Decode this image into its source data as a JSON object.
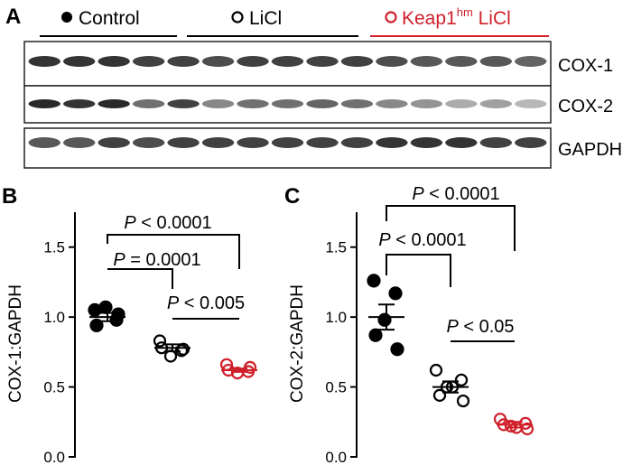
{
  "panel_a": {
    "label": "A",
    "groups": [
      {
        "name": "Control",
        "color": "#000000",
        "marker": "filled"
      },
      {
        "name": "LiCl",
        "color": "#000000",
        "marker": "open"
      },
      {
        "name": "Keap1",
        "superscript": "hm",
        "suffix": " LiCl",
        "color": "#d0202a",
        "marker": "open"
      }
    ],
    "blots": [
      "COX-1",
      "COX-2",
      "GAPDH"
    ],
    "lanes_per_group": 5
  },
  "chart_data": [
    {
      "panel": "B",
      "type": "scatter",
      "ylabel": "COX-1:GAPDH",
      "ylim": [
        0.0,
        1.75
      ],
      "yticks": [
        "0.0",
        "0.5",
        "1.0",
        "1.5"
      ],
      "groups": [
        {
          "name": "Control",
          "color": "#000000",
          "marker": "filled",
          "values": [
            1.05,
            0.98,
            1.07,
            0.94,
            1.02
          ],
          "mean": 1.0,
          "sem": 0.03
        },
        {
          "name": "LiCl",
          "color": "#000000",
          "marker": "open",
          "values": [
            0.83,
            0.76,
            0.72,
            0.78,
            0.77
          ],
          "mean": 0.78,
          "sem": 0.025
        },
        {
          "name": "Keap1hm LiCl",
          "color": "#d0202a",
          "marker": "open",
          "values": [
            0.66,
            0.61,
            0.6,
            0.62,
            0.64
          ],
          "mean": 0.62,
          "sem": 0.012
        }
      ],
      "comparisons": [
        {
          "from": 0,
          "to": 2,
          "italic": "P",
          "text": " < 0.0001"
        },
        {
          "from": 0,
          "to": 1,
          "italic": "P",
          "text": " = 0.0001"
        },
        {
          "from": 1,
          "to": 2,
          "italic": "P",
          "text": " < 0.005"
        }
      ]
    },
    {
      "panel": "C",
      "type": "scatter",
      "ylabel": "COX-2:GAPDH",
      "ylim": [
        0.0,
        1.75
      ],
      "yticks": [
        "0.0",
        "0.5",
        "1.0",
        "1.5"
      ],
      "groups": [
        {
          "name": "Control",
          "color": "#000000",
          "marker": "filled",
          "values": [
            1.26,
            1.17,
            0.98,
            0.87,
            0.77
          ],
          "mean": 1.0,
          "sem": 0.09
        },
        {
          "name": "LiCl",
          "color": "#000000",
          "marker": "open",
          "values": [
            0.62,
            0.55,
            0.5,
            0.44,
            0.4,
            0.5
          ],
          "mean": 0.5,
          "sem": 0.04
        },
        {
          "name": "Keap1hm LiCl",
          "color": "#d0202a",
          "marker": "open",
          "values": [
            0.27,
            0.24,
            0.22,
            0.23,
            0.2,
            0.21
          ],
          "mean": 0.23,
          "sem": 0.02
        }
      ],
      "comparisons": [
        {
          "from": 0,
          "to": 2,
          "italic": "P",
          "text": " < 0.0001"
        },
        {
          "from": 0,
          "to": 1,
          "italic": "P",
          "text": " < 0.0001"
        },
        {
          "from": 1,
          "to": 2,
          "italic": "P",
          "text": " < 0.05"
        }
      ]
    }
  ]
}
